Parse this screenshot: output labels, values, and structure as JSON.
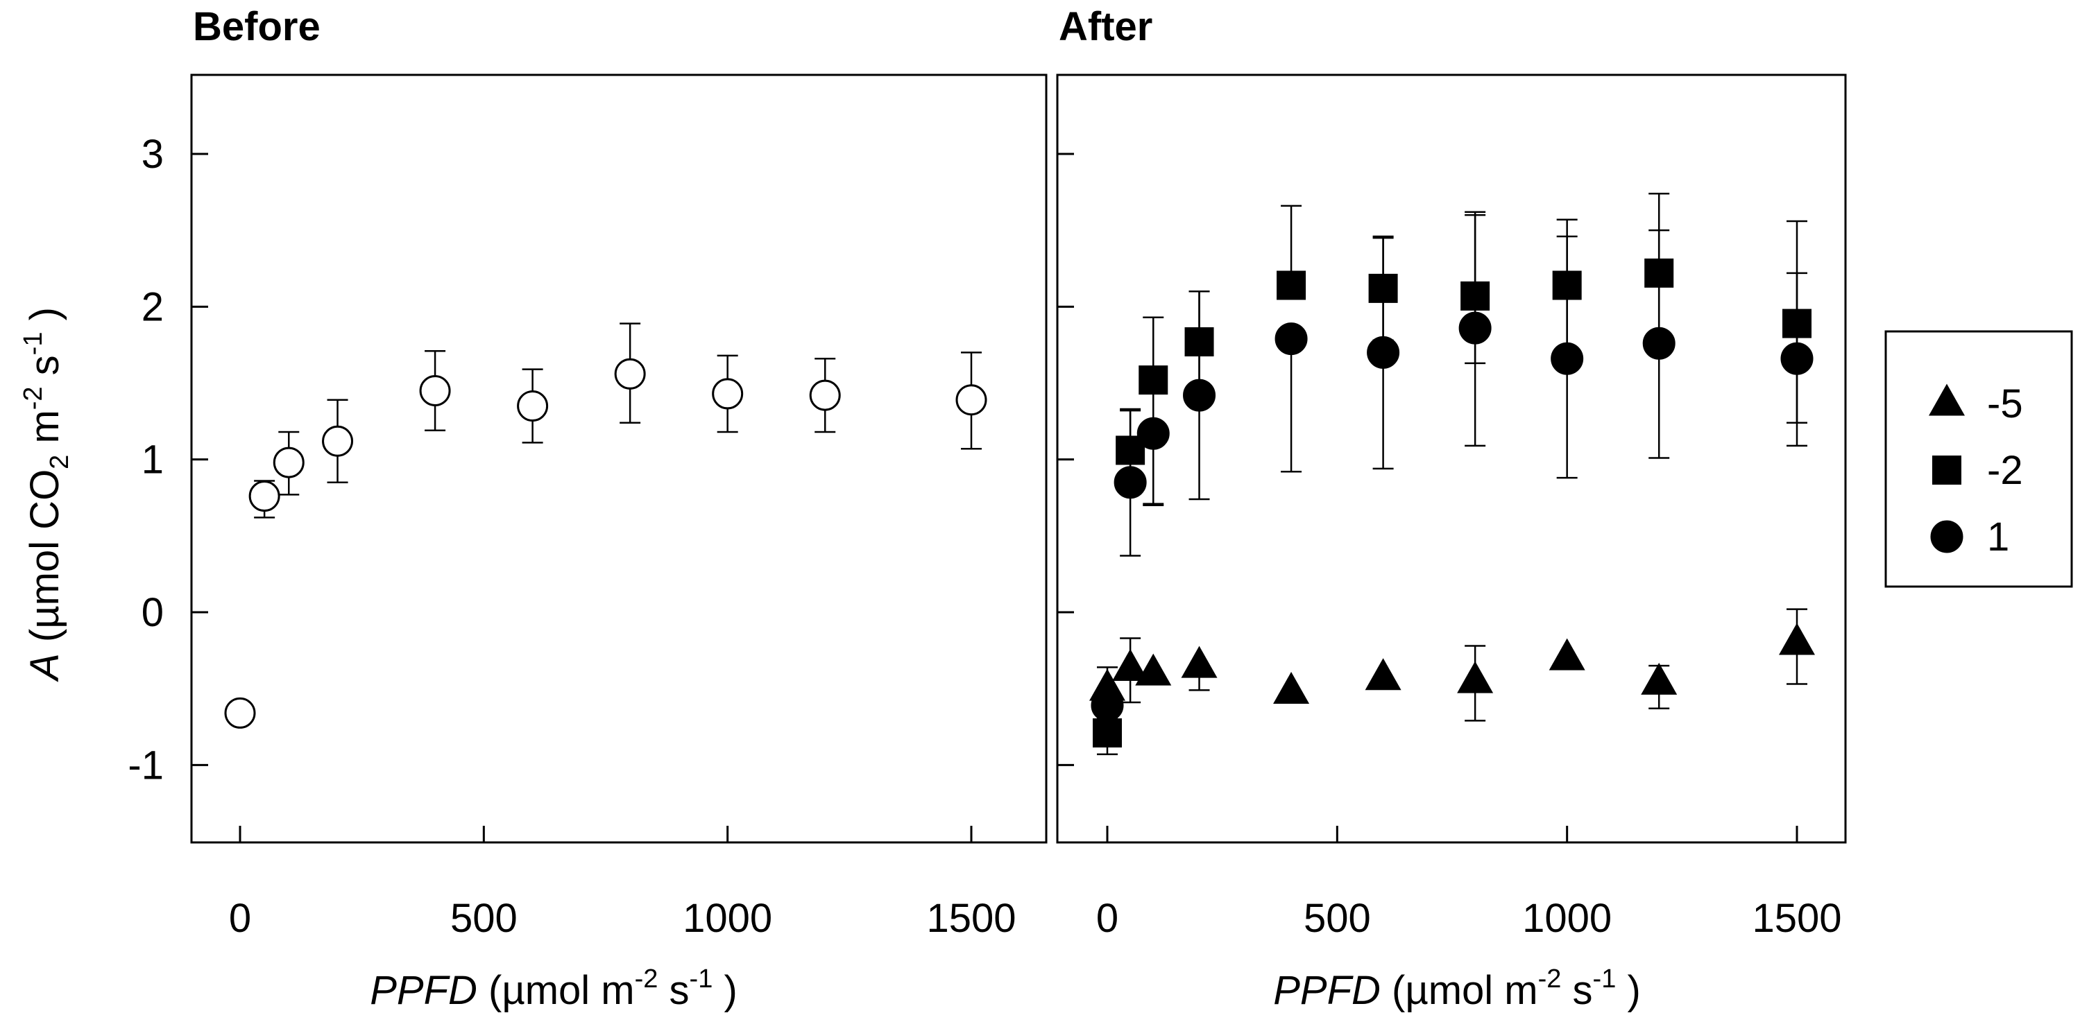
{
  "chart_data": [
    {
      "type": "scatter",
      "title": "Before",
      "xlabel": {
        "italic": "PPFD",
        "unit_prefix": " (µmol m",
        "exp1": "-2",
        "mid": " s",
        "exp2": "-1",
        "suffix": " )"
      },
      "ylabel": {
        "italic": "A",
        "unit_prefix": " (µmol CO",
        "sub": "2",
        "mid1": " m",
        "exp1": "-2",
        "mid2": " s",
        "exp2": "-1",
        "suffix": " )"
      },
      "xlim": [
        -100,
        1600
      ],
      "ylim": [
        -1.5,
        3.5
      ],
      "xticks": [
        0,
        500,
        1000,
        1500
      ],
      "xtick_labels": [
        "0",
        "500",
        "1000",
        "1500"
      ],
      "yticks": [
        -1,
        0,
        1,
        2,
        3
      ],
      "ytick_labels": [
        "-1",
        "0",
        "1",
        "2",
        "3"
      ],
      "series": [
        {
          "name": "Before",
          "marker": "circle-open",
          "x": [
            0,
            50,
            100,
            200,
            400,
            600,
            800,
            1000,
            1200,
            1500
          ],
          "y": [
            -0.66,
            0.76,
            0.98,
            1.12,
            1.45,
            1.35,
            1.56,
            1.43,
            1.42,
            1.39
          ],
          "err_plus": [
            0,
            0.1,
            0.2,
            0.27,
            0.26,
            0.24,
            0.33,
            0.25,
            0.24,
            0.31
          ],
          "err_minus": [
            0,
            0.14,
            0.21,
            0.27,
            0.26,
            0.24,
            0.32,
            0.25,
            0.24,
            0.32
          ]
        }
      ]
    },
    {
      "type": "scatter",
      "title": "After",
      "xlabel": {
        "italic": "PPFD",
        "unit_prefix": " (µmol m",
        "exp1": "-2",
        "mid": " s",
        "exp2": "-1",
        "suffix": " )"
      },
      "xlim": [
        -100,
        1600
      ],
      "ylim": [
        -1.5,
        3.5
      ],
      "xticks": [
        0,
        500,
        1000,
        1500
      ],
      "xtick_labels": [
        "0",
        "500",
        "1000",
        "1500"
      ],
      "yticks": [
        -1,
        0,
        1,
        2,
        3
      ],
      "series": [
        {
          "name": "-5",
          "marker": "triangle-filled",
          "x": [
            0,
            50,
            100,
            200,
            400,
            600,
            800,
            1000,
            1200,
            1500
          ],
          "y": [
            -0.5,
            -0.37,
            -0.4,
            -0.35,
            -0.52,
            -0.43,
            -0.45,
            -0.3,
            -0.46,
            -0.2
          ],
          "err_plus": [
            0.14,
            0.2,
            0.0,
            0.0,
            0.0,
            0.0,
            0.23,
            0.0,
            0.11,
            0.22
          ],
          "err_minus": [
            0.14,
            0.22,
            0.0,
            0.16,
            0.0,
            0.0,
            0.26,
            0.0,
            0.17,
            0.27
          ]
        },
        {
          "name": "-2",
          "marker": "square-filled",
          "x": [
            0,
            50,
            100,
            200,
            400,
            600,
            800,
            1000,
            1200,
            1500
          ],
          "y": [
            -0.79,
            1.06,
            1.52,
            1.77,
            2.14,
            2.12,
            2.07,
            2.14,
            2.22,
            1.89
          ],
          "err_plus": [
            0.1,
            0.27,
            0.41,
            0.33,
            0.52,
            0.34,
            0.55,
            0.43,
            0.52,
            0.67
          ],
          "err_minus": [
            0.14,
            0.2,
            0.81,
            0.35,
            0.0,
            0.34,
            0.44,
            0.43,
            0.5,
            0.65
          ]
        },
        {
          "name": "1",
          "marker": "circle-filled",
          "x": [
            0,
            50,
            100,
            200,
            400,
            600,
            800,
            1000,
            1200,
            1500
          ],
          "y": [
            -0.61,
            0.85,
            1.17,
            1.42,
            1.79,
            1.7,
            1.86,
            1.66,
            1.76,
            1.66
          ],
          "err_plus": [
            0.0,
            0.47,
            0.0,
            0.68,
            0.0,
            0.75,
            0.74,
            0.8,
            0.74,
            0.56
          ],
          "err_minus": [
            0.0,
            0.48,
            0.47,
            0.68,
            0.87,
            0.76,
            0.77,
            0.78,
            0.75,
            0.57
          ]
        }
      ]
    }
  ],
  "legend": {
    "position": "right",
    "entries": [
      {
        "label": "-5",
        "marker": "triangle-filled"
      },
      {
        "label": "-2",
        "marker": "square-filled"
      },
      {
        "label": "1",
        "marker": "circle-filled"
      }
    ]
  }
}
